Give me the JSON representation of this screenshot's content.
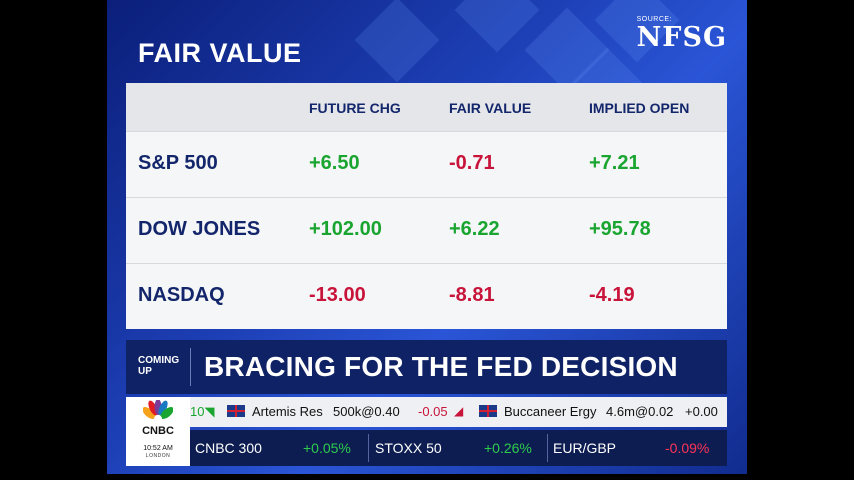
{
  "title": "FAIR VALUE",
  "source": {
    "label": "SOURCE:",
    "name": "NFSG"
  },
  "table": {
    "headers": [
      "FUTURE CHG",
      "FAIR VALUE",
      "IMPLIED OPEN"
    ],
    "rows": [
      {
        "label": "S&P 500",
        "future_chg": "+6.50",
        "fair_value": "-0.71",
        "implied_open": "+7.21"
      },
      {
        "label": "DOW JONES",
        "future_chg": "+102.00",
        "fair_value": "+6.22",
        "implied_open": "+95.78"
      },
      {
        "label": "NASDAQ",
        "future_chg": "-13.00",
        "fair_value": "-8.81",
        "implied_open": "-4.19"
      }
    ]
  },
  "coming_up": {
    "label": "COMING UP",
    "headline": "BRACING FOR THE FED DECISION"
  },
  "logo": {
    "text": "CNBC",
    "time": "10:52 AM",
    "city": "LONDON"
  },
  "ticker_top": [
    {
      "name": "Artemis Res",
      "price": "500k@0.40",
      "change": "-0.05"
    },
    {
      "name": "Buccaneer Ergy",
      "price": "4.6m@0.02",
      "change": "+0.00"
    }
  ],
  "ticker_bottom": [
    {
      "name": "CNBC 300",
      "change": "+0.05%"
    },
    {
      "name": "STOXX 50",
      "change": "+0.26%"
    },
    {
      "name": "EUR/GBP",
      "change": "-0.09%"
    }
  ],
  "colors": {
    "positive": "#1aa531",
    "negative": "#c8143a",
    "navy": "#13266b"
  }
}
